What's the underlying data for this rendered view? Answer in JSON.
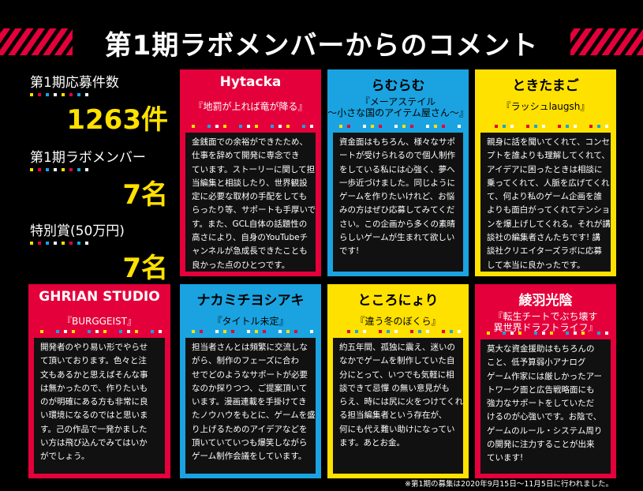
{
  "header": {
    "title": "第1期ラボメンバーからのコメント"
  },
  "stats": [
    {
      "label": "第1期応募件数",
      "value": "1263件"
    },
    {
      "label": "第1期ラボメンバー",
      "value": "7名"
    },
    {
      "label": "特別賞(50万円)",
      "value": "7名"
    }
  ],
  "cards": [
    {
      "name": "Hytacka",
      "work": [
        "『地罰が上れば竜が降る』"
      ],
      "comment": [
        "金銭面での余裕ができたため、",
        "仕事を辞めて開発に専念でき",
        "ています。ストーリーに関して担",
        "当編集と相談したり、世界観設",
        "定に必要な取材の手配をしても",
        "らったり等、サポートも手厚いで",
        "す。また、GCL自体の話題性の",
        "高さにより、自身のYouTubeチ",
        "ャンネルが急成長できたことも",
        "良かった点のひとつです。"
      ]
    },
    {
      "name": "らむらむ",
      "work": [
        "『メーアステイル",
        "～小さな国のアイテム屋さん～』"
      ],
      "comment": [
        "資金面はもちろん、様々なサポ",
        "ートが受けられるので個人制作",
        "をしている私には心強く、夢へ",
        "一歩近づけました。同じように",
        "ゲームを作りたいけれど、お悩",
        "みの方はぜひ応募してみてくだ",
        "さい。この企画から多くの素晴",
        "らしいゲームが生まれて欲しい",
        "です!"
      ]
    },
    {
      "name": "ときたまご",
      "work": [
        "『ラッシュlaugsh』"
      ],
      "comment": [
        "親身に話を聞いてくれて、コンセ",
        "プトを誰よりも理解してくれて、",
        "アイデアに困ったときは相談に",
        "乗ってくれて、人脈を広げてくれ",
        "て、何より私のゲーム企画を誰",
        "よりも面白がってくれてテンショ",
        "ンを爆上げしてくれる。それが講",
        "談社の編集者さんたちです! 講",
        "談社クリエイターズラボに応募",
        "して本当に良かったです。"
      ]
    },
    {
      "name": "GHRIAN STUDIO",
      "work": [
        "『BURGGEIST』"
      ],
      "comment": [
        "開発者のやり易い形でやらせ",
        "て頂いております。色々と注",
        "文もあるかと思えばそんな事",
        "は無かったので、作りたいも",
        "のが明確にある方も非常に良",
        "い環境になるのではと思いま",
        "す。己の作品で一発かました",
        "い方は飛び込んでみてはいか",
        "がでしょう。"
      ]
    },
    {
      "name": "ナカミチヨシアキ",
      "work": [
        "『タイトル未定』"
      ],
      "comment": [
        "担当者さんとは頻繁に交流しな",
        "がら、制作のフェーズに合わ",
        "せでどのようなサポートが必要",
        "なのか探りつつ、ご提案頂いて",
        "います。漫画連載を手掛けてき",
        "たノウハウをもとに、ゲームを盛",
        "り上げるためのアイデアなどを",
        "頂いていていつも爆笑しながら",
        "ゲーム制作会議をしています。"
      ]
    },
    {
      "name": "ところにょり",
      "work": [
        "『違う冬のぼくら』"
      ],
      "comment": [
        "約五年間、孤独に震え、迷いの",
        "なかでゲームを制作していた自",
        "分にとって、いつでも気軽に相",
        "談できて忌憚 の無い意見がも",
        "らえ、時には尻に火をつけてくれ",
        "る担当編集者という存在が、",
        "何にも代え難い助けになってい",
        "ます。あとお金。"
      ]
    },
    {
      "name": "綾羽光陰",
      "work": [
        "『転生チートでぶち壊す",
        "異世界ドラフトライフ』"
      ],
      "comment": [
        "莫大な資金援助はもちろんの",
        "こと、低予算弱小アナログ",
        "ゲーム作家には厳しかったアー",
        "トワーク面と広告戦略面にも",
        "強力なサポートをしていただ",
        "けるのが心強いです。お陰で、",
        "ゲームのルール・システム周り",
        "の開発に注力することが出来",
        "ています!"
      ]
    }
  ],
  "footnote": "※第1期の募集は2020年9月15日～11月5日に行われました。"
}
